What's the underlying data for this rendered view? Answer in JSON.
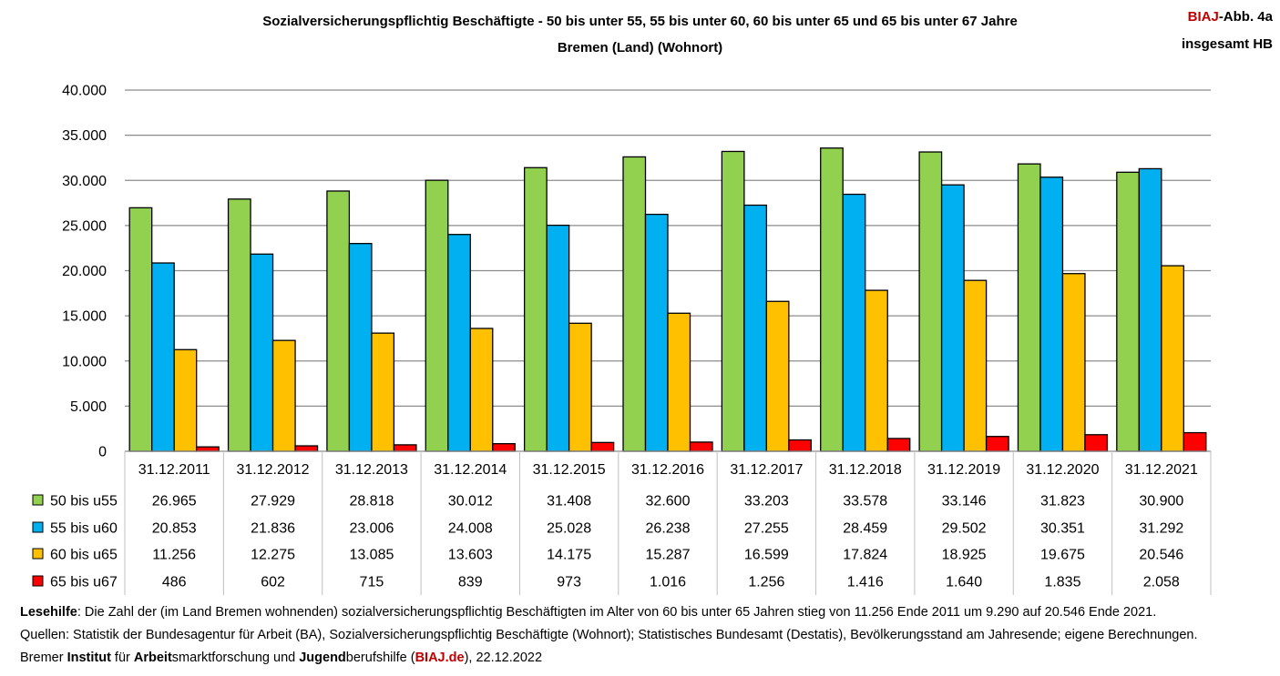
{
  "header": {
    "title_line1": "Sozialversicherungspflichtig Beschäftigte - 50 bis unter 55, 55 bis unter 60, 60 bis unter 65 und 65 bis unter 67 Jahre",
    "title_line2": "Bremen (Land) (Wohnort)",
    "badge_brand": "BIAJ",
    "badge_suffix": "-Abb. 4a",
    "badge_line2": "insgesamt HB"
  },
  "chart_data": {
    "type": "bar",
    "title": "Sozialversicherungspflichtig Beschäftigte - 50 bis unter 55, 55 bis unter 60, 60 bis unter 65 und 65 bis unter 67 Jahre",
    "subtitle": "Bremen (Land) (Wohnort)",
    "xlabel": "",
    "ylabel": "",
    "ylim": [
      0,
      40000
    ],
    "yticks": [
      0,
      5000,
      10000,
      15000,
      20000,
      25000,
      30000,
      35000,
      40000
    ],
    "ytick_labels": [
      "0",
      "5.000",
      "10.000",
      "15.000",
      "20.000",
      "25.000",
      "30.000",
      "35.000",
      "40.000"
    ],
    "grid": true,
    "legend_position": "data-table-below",
    "categories": [
      "31.12.2011",
      "31.12.2012",
      "31.12.2013",
      "31.12.2014",
      "31.12.2015",
      "31.12.2016",
      "31.12.2017",
      "31.12.2018",
      "31.12.2019",
      "31.12.2020",
      "31.12.2021"
    ],
    "series": [
      {
        "name": "50 bis u55",
        "color": "#92d050",
        "values": [
          26965,
          27929,
          28818,
          30012,
          31408,
          32600,
          33203,
          33578,
          33146,
          31823,
          30900
        ],
        "labels": [
          "26.965",
          "27.929",
          "28.818",
          "30.012",
          "31.408",
          "32.600",
          "33.203",
          "33.578",
          "33.146",
          "31.823",
          "30.900"
        ]
      },
      {
        "name": "55 bis u60",
        "color": "#00b0f0",
        "values": [
          20853,
          21836,
          23006,
          24008,
          25028,
          26238,
          27255,
          28459,
          29502,
          30351,
          31292
        ],
        "labels": [
          "20.853",
          "21.836",
          "23.006",
          "24.008",
          "25.028",
          "26.238",
          "27.255",
          "28.459",
          "29.502",
          "30.351",
          "31.292"
        ]
      },
      {
        "name": "60 bis u65",
        "color": "#ffc000",
        "values": [
          11256,
          12275,
          13085,
          13603,
          14175,
          15287,
          16599,
          17824,
          18925,
          19675,
          20546
        ],
        "labels": [
          "11.256",
          "12.275",
          "13.085",
          "13.603",
          "14.175",
          "15.287",
          "16.599",
          "17.824",
          "18.925",
          "19.675",
          "20.546"
        ]
      },
      {
        "name": "65 bis u67",
        "color": "#ff0000",
        "values": [
          486,
          602,
          715,
          839,
          973,
          1016,
          1256,
          1416,
          1640,
          1835,
          2058
        ],
        "labels": [
          "486",
          "602",
          "715",
          "839",
          "973",
          "1.016",
          "1.256",
          "1.416",
          "1.640",
          "1.835",
          "2.058"
        ]
      }
    ]
  },
  "footer": {
    "line1_bold": "Lesehilfe",
    "line1_rest": ": Die Zahl der (im Land Bremen wohnenden) sozialversicherungspflichtig Beschäftigten im Alter von 60 bis unter 65 Jahren stieg von 11.256 Ende 2011 um 9.290 auf 20.546 Ende 2021.",
    "line2": "Quellen: Statistik der Bundesagentur für Arbeit (BA), Sozialversicherungspflichtig Beschäftigte (Wohnort); Statistisches Bundesamt (Destatis), Bevölkerungsstand am Jahresende; eigene Berechnungen.",
    "line3_prefix": "Bremer ",
    "line3_b1": "Institut",
    "line3_t1": " für ",
    "line3_b2": "Arbeit",
    "line3_t2": "smarktforschung und ",
    "line3_b3": "Jugend",
    "line3_t3": "berufshilfe (",
    "line3_link": "BIAJ.de",
    "line3_suffix": "), 22.12.2022"
  }
}
